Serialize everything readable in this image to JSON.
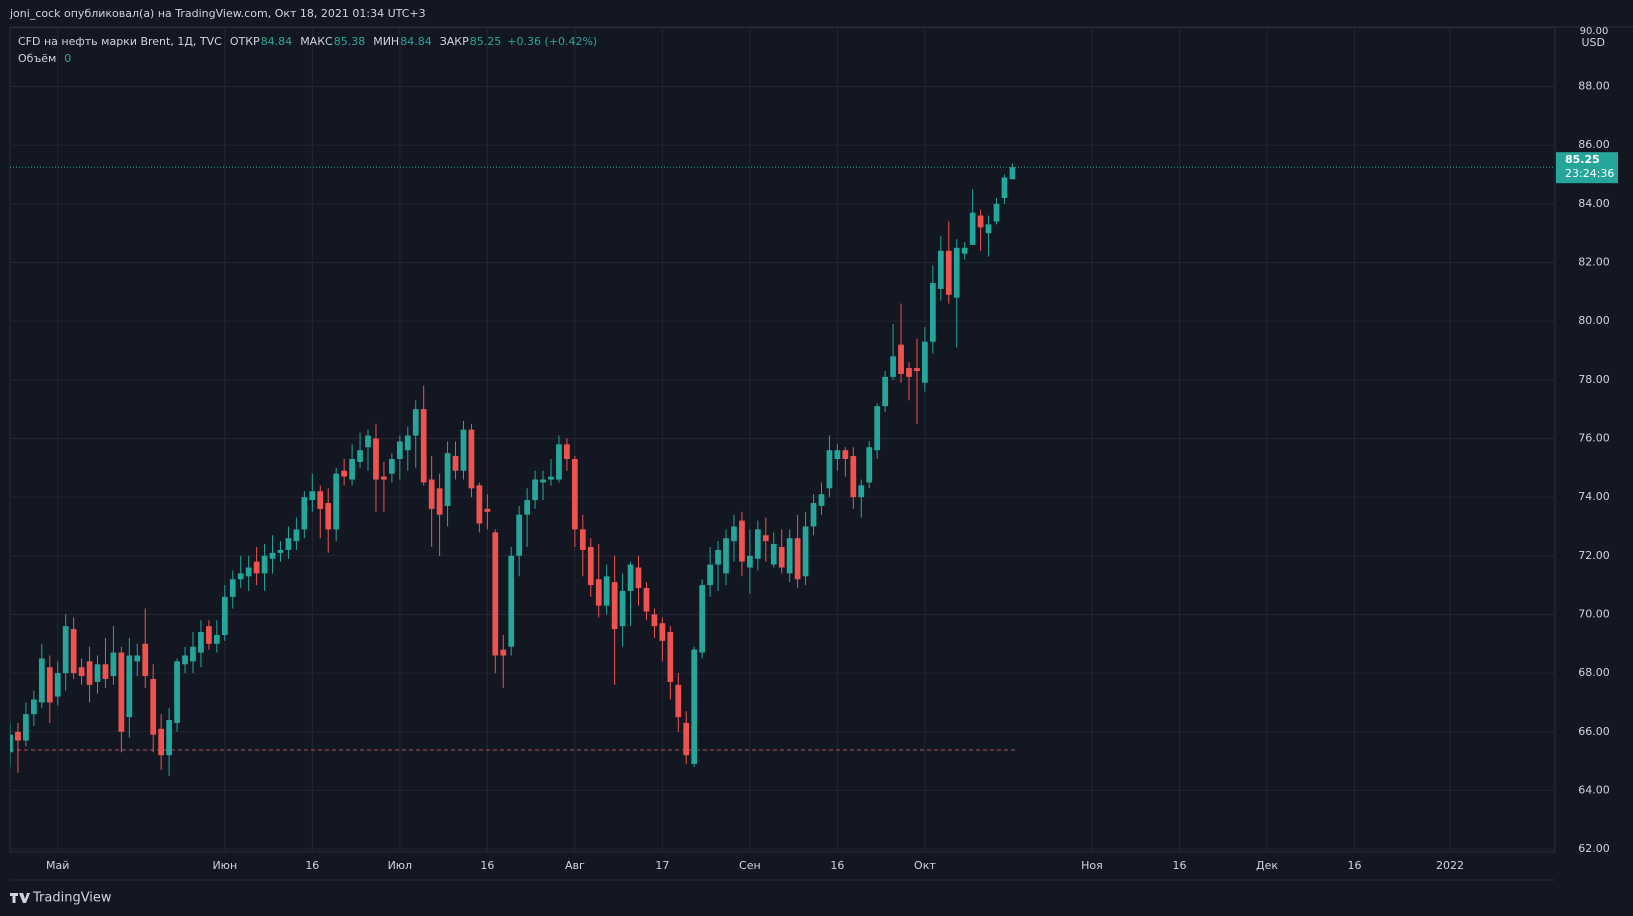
{
  "header": "joni_cock опубликовал(а) на TradingView.com, Окт 18, 2021 01:34 UTC+3",
  "brand": "TradingView",
  "chart_data": {
    "type": "candlestick",
    "title": "CFD на нефть марки Brent, 1Д, TVC",
    "labels": {
      "open": "ОТКР",
      "high": "МАКС",
      "low": "МИН",
      "close": "ЗАКР",
      "volume": "Объём"
    },
    "change": "+0.36 (+0.42%)",
    "volume": 0,
    "currency": "USD",
    "countdown": "23:24:36",
    "up_color": "#26a69a",
    "down_color": "#ef5350",
    "grid": true,
    "hline": 65.38,
    "hline_color": "#b2525a",
    "open": [
      65.3,
      66.0,
      65.7,
      66.6,
      67.0,
      68.2,
      67.2,
      68.0,
      69.5,
      68.2,
      68.4,
      67.7,
      68.3,
      67.9,
      68.7,
      66.5,
      68.4,
      69.0,
      67.8,
      66.1,
      65.2,
      66.3,
      68.3,
      68.4,
      68.7,
      69.6,
      69.0,
      69.3,
      70.6,
      71.2,
      71.3,
      71.8,
      71.4,
      71.9,
      72.1,
      72.2,
      72.5,
      72.9,
      73.9,
      74.2,
      73.8,
      72.9,
      74.9,
      74.6,
      75.2,
      75.7,
      76.0,
      74.7,
      74.8,
      75.3,
      75.6,
      76.1,
      77.0,
      74.6,
      74.3,
      73.7,
      75.4,
      74.9,
      76.3,
      74.4,
      73.6,
      72.8,
      68.8,
      68.9,
      72.0,
      73.4,
      73.9,
      74.5,
      74.6,
      74.6,
      75.8,
      75.3,
      72.9,
      72.3,
      71.2,
      70.3,
      71.1,
      69.6,
      70.8,
      71.6,
      70.9,
      70.0,
      69.7,
      69.4,
      67.6,
      66.3,
      64.9,
      68.7,
      71.0,
      71.7,
      71.4,
      72.5,
      73.2,
      71.6,
      71.9,
      72.7,
      71.7,
      72.3,
      71.4,
      72.6,
      71.3,
      73.0,
      73.7,
      74.3,
      75.3,
      75.6,
      75.4,
      74.0,
      74.5,
      75.6,
      77.1,
      78.1,
      79.2,
      78.4,
      78.4,
      77.9,
      79.3,
      81.1,
      82.4,
      80.8,
      82.3,
      82.6,
      83.6,
      83.0,
      83.4,
      84.2,
      84.84
    ],
    "high": [
      66.3,
      66.3,
      67.0,
      67.4,
      69.0,
      68.6,
      68.4,
      70.0,
      69.9,
      68.5,
      68.9,
      68.6,
      69.2,
      69.6,
      68.9,
      69.2,
      69.0,
      70.2,
      68.3,
      66.6,
      66.8,
      68.5,
      68.9,
      69.4,
      69.8,
      69.8,
      69.8,
      71.0,
      71.5,
      72.0,
      72.0,
      72.3,
      72.4,
      72.7,
      72.5,
      73.0,
      73.3,
      74.2,
      74.8,
      74.4,
      74.3,
      75.0,
      75.3,
      75.8,
      76.2,
      76.3,
      76.5,
      75.2,
      75.5,
      76.1,
      76.4,
      77.3,
      77.8,
      75.4,
      74.8,
      75.9,
      75.9,
      76.6,
      76.5,
      74.5,
      74.1,
      72.9,
      69.3,
      72.3,
      73.7,
      74.3,
      74.9,
      74.9,
      75.3,
      76.1,
      76.0,
      75.4,
      73.4,
      72.6,
      72.4,
      71.7,
      72.0,
      71.4,
      71.8,
      72.0,
      71.1,
      70.2,
      69.9,
      69.6,
      68.0,
      66.7,
      68.9,
      71.2,
      72.3,
      72.5,
      72.9,
      73.4,
      73.5,
      72.9,
      73.2,
      73.3,
      72.8,
      72.9,
      72.9,
      73.4,
      73.5,
      74.1,
      74.5,
      76.1,
      75.8,
      75.7,
      75.7,
      74.6,
      75.9,
      77.2,
      78.3,
      79.9,
      80.6,
      78.6,
      79.4,
      79.8,
      81.9,
      82.9,
      83.4,
      82.8,
      82.7,
      84.5,
      83.8,
      83.6,
      84.2,
      85.0,
      85.38
    ],
    "low": [
      64.8,
      64.6,
      65.5,
      66.2,
      66.8,
      66.3,
      66.9,
      67.4,
      67.8,
      67.6,
      67.0,
      67.3,
      67.5,
      67.6,
      65.3,
      65.8,
      67.9,
      67.5,
      65.3,
      64.7,
      64.5,
      66.0,
      68.0,
      68.0,
      68.2,
      68.8,
      68.7,
      69.1,
      70.2,
      70.9,
      70.8,
      71.0,
      70.8,
      71.4,
      71.8,
      71.9,
      72.2,
      72.6,
      73.5,
      72.6,
      72.1,
      72.5,
      74.4,
      74.4,
      75.0,
      74.9,
      73.5,
      73.5,
      74.5,
      74.6,
      74.9,
      75.0,
      74.4,
      72.3,
      72.0,
      73.0,
      74.6,
      74.6,
      74.0,
      72.8,
      72.9,
      68.0,
      67.5,
      68.6,
      71.3,
      72.3,
      73.6,
      73.9,
      74.4,
      74.5,
      74.9,
      72.3,
      71.3,
      70.6,
      69.9,
      70.0,
      67.6,
      68.9,
      69.6,
      70.3,
      69.8,
      69.2,
      68.4,
      67.1,
      66.0,
      64.9,
      64.8,
      68.5,
      70.6,
      70.8,
      71.0,
      71.8,
      71.3,
      70.7,
      71.5,
      71.8,
      71.6,
      71.4,
      71.1,
      70.9,
      71.0,
      72.7,
      73.4,
      74.0,
      74.9,
      74.7,
      73.6,
      73.3,
      74.3,
      75.3,
      76.9,
      78.0,
      77.9,
      77.3,
      76.5,
      77.6,
      78.9,
      80.7,
      80.6,
      79.1,
      82.1,
      82.6,
      82.4,
      82.2,
      83.3,
      84.0,
      84.84
    ],
    "close": [
      65.9,
      65.7,
      66.6,
      67.1,
      68.5,
      67.0,
      68.0,
      69.6,
      68.0,
      67.9,
      67.6,
      68.3,
      67.8,
      68.7,
      66.0,
      68.6,
      68.6,
      67.9,
      65.9,
      65.2,
      66.4,
      68.4,
      68.6,
      68.9,
      69.4,
      69.0,
      69.3,
      70.6,
      71.2,
      71.4,
      71.6,
      71.4,
      72.0,
      72.1,
      72.2,
      72.6,
      72.9,
      74.0,
      74.2,
      73.6,
      72.9,
      74.8,
      74.7,
      75.3,
      75.6,
      76.1,
      74.6,
      74.6,
      75.3,
      75.9,
      76.1,
      77.0,
      74.5,
      73.6,
      73.4,
      75.5,
      74.9,
      76.3,
      74.3,
      73.1,
      73.5,
      68.6,
      68.6,
      72.0,
      73.4,
      73.9,
      74.6,
      74.6,
      74.7,
      75.8,
      75.3,
      72.9,
      72.2,
      71.0,
      70.3,
      71.3,
      69.5,
      70.8,
      71.7,
      70.9,
      70.1,
      69.6,
      69.1,
      67.7,
      66.5,
      65.2,
      68.8,
      71.0,
      71.7,
      72.2,
      72.6,
      73.0,
      71.8,
      72.0,
      72.9,
      72.5,
      72.4,
      71.6,
      72.6,
      71.2,
      73.0,
      73.8,
      74.1,
      75.6,
      75.6,
      75.3,
      74.0,
      74.4,
      75.7,
      77.1,
      78.1,
      78.8,
      78.2,
      78.1,
      78.3,
      79.3,
      81.3,
      82.4,
      80.9,
      82.5,
      82.5,
      83.7,
      83.2,
      83.3,
      84.0,
      84.9,
      85.25
    ],
    "xlim": [
      0,
      194.2
    ],
    "xticks": [
      {
        "value": 6,
        "label": "Май"
      },
      {
        "value": 27,
        "label": "Июн"
      },
      {
        "value": 38,
        "label": "16"
      },
      {
        "value": 49,
        "label": "Июл"
      },
      {
        "value": 60,
        "label": "16"
      },
      {
        "value": 71,
        "label": "Авг"
      },
      {
        "value": 82,
        "label": "17"
      },
      {
        "value": 93,
        "label": "Сен"
      },
      {
        "value": 104,
        "label": "16"
      },
      {
        "value": 115,
        "label": "Окт"
      },
      {
        "value": 136,
        "label": "Ноя"
      },
      {
        "value": 147,
        "label": "16"
      },
      {
        "value": 158,
        "label": "Дек"
      },
      {
        "value": 169,
        "label": "16"
      },
      {
        "value": 181,
        "label": "2022"
      }
    ],
    "ylim": [
      61.9,
      90.03
    ],
    "yticks": [
      {
        "value": 62,
        "label": "62.00"
      },
      {
        "value": 64,
        "label": "64.00"
      },
      {
        "value": 66,
        "label": "66.00"
      },
      {
        "value": 68,
        "label": "68.00"
      },
      {
        "value": 70,
        "label": "70.00"
      },
      {
        "value": 72,
        "label": "72.00"
      },
      {
        "value": 74,
        "label": "74.00"
      },
      {
        "value": 76,
        "label": "76.00"
      },
      {
        "value": 78,
        "label": "78.00"
      },
      {
        "value": 80,
        "label": "80.00"
      },
      {
        "value": 82,
        "label": "82.00"
      },
      {
        "value": 84,
        "label": "84.00"
      },
      {
        "value": 86,
        "label": "86.00"
      },
      {
        "value": 88,
        "label": "88.00"
      },
      {
        "value": 90,
        "label": "90.00"
      }
    ]
  }
}
